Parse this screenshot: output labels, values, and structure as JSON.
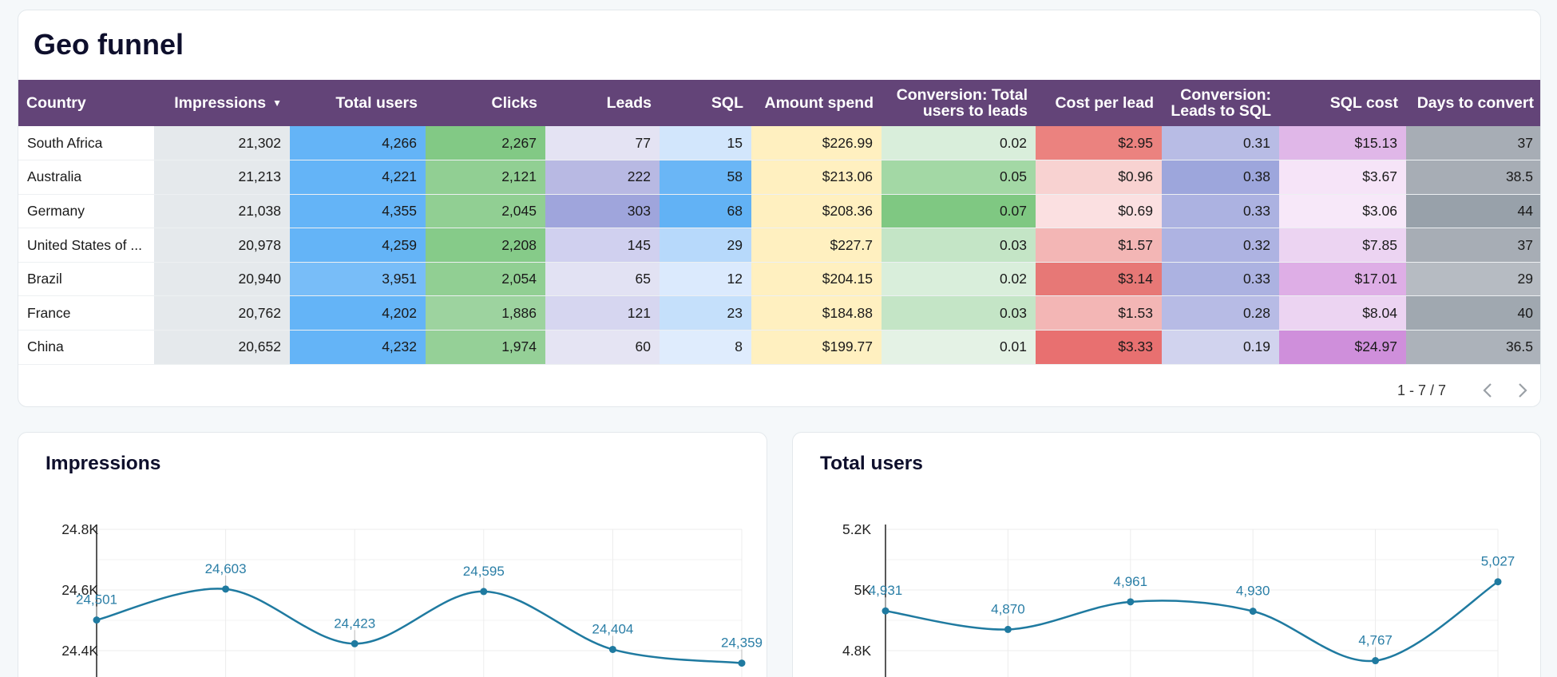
{
  "geo": {
    "title": "Geo funnel",
    "columns": [
      "Country",
      "Impressions",
      "Total users",
      "Clicks",
      "Leads",
      "SQL",
      "Amount spend",
      "Conversion: Total users to leads",
      "Cost per lead",
      "Conversion: Leads to SQL",
      "SQL cost",
      "Days to convert"
    ],
    "sort_icon": "sort-desc-icon",
    "rows": [
      [
        "South Africa",
        "21,302",
        "4,266",
        "2,267",
        "77",
        "15",
        "$226.99",
        "0.02",
        "$2.95",
        "0.31",
        "$15.13",
        "37"
      ],
      [
        "Australia",
        "21,213",
        "4,221",
        "2,121",
        "222",
        "58",
        "$213.06",
        "0.05",
        "$0.96",
        "0.38",
        "$3.67",
        "38.5"
      ],
      [
        "Germany",
        "21,038",
        "4,355",
        "2,045",
        "303",
        "68",
        "$208.36",
        "0.07",
        "$0.69",
        "0.33",
        "$3.06",
        "44"
      ],
      [
        "United States of ...",
        "20,978",
        "4,259",
        "2,208",
        "145",
        "29",
        "$227.7",
        "0.03",
        "$1.57",
        "0.32",
        "$7.85",
        "37"
      ],
      [
        "Brazil",
        "20,940",
        "3,951",
        "2,054",
        "65",
        "12",
        "$204.15",
        "0.02",
        "$3.14",
        "0.33",
        "$17.01",
        "29"
      ],
      [
        "France",
        "20,762",
        "4,202",
        "1,886",
        "121",
        "23",
        "$184.88",
        "0.03",
        "$1.53",
        "0.28",
        "$8.04",
        "40"
      ],
      [
        "China",
        "20,652",
        "4,232",
        "1,974",
        "60",
        "8",
        "$199.77",
        "0.01",
        "$3.33",
        "0.19",
        "$24.97",
        "36.5"
      ]
    ],
    "cell_colors": [
      [
        "#ffffff",
        "#e5e9ec",
        "#64b4f7",
        "#82c985",
        "#e4e3f3",
        "#d2e6fc",
        "#fff0c0",
        "#d9eedb",
        "#eb827f",
        "#b8bce5",
        "#e0b7e8",
        "#a7adb5"
      ],
      [
        "#ffffff",
        "#e5e9ec",
        "#64b4f7",
        "#91cf93",
        "#b8b9e3",
        "#6ab6f6",
        "#fff0c0",
        "#a3d8a5",
        "#f8d2d1",
        "#9da6dc",
        "#f6e4f8",
        "#a7adb5"
      ],
      [
        "#ffffff",
        "#e5e9ec",
        "#64b4f7",
        "#91cf93",
        "#9fa5dc",
        "#62b2f5",
        "#fff0c0",
        "#7fc882",
        "#fbe0e1",
        "#acb2e1",
        "#f7e8f9",
        "#98a1aa"
      ],
      [
        "#ffffff",
        "#e5e9ec",
        "#64b4f7",
        "#86cb89",
        "#d0d0ef",
        "#b7d9fb",
        "#fff0c0",
        "#c4e5c6",
        "#f3b6b5",
        "#aeb3e2",
        "#ecd4f2",
        "#a7adb5"
      ],
      [
        "#ffffff",
        "#e5e9ec",
        "#78bdf8",
        "#91cf93",
        "#e2e2f3",
        "#dbeafd",
        "#fff0c0",
        "#d9eedb",
        "#e77876",
        "#acb2e1",
        "#deaee6",
        "#b6bbc2"
      ],
      [
        "#ffffff",
        "#e5e9ec",
        "#64b4f7",
        "#9dd39f",
        "#d6d6f0",
        "#c5e0fb",
        "#fff0c0",
        "#c4e5c6",
        "#f3b6b5",
        "#b7bbe5",
        "#ecd4f2",
        "#a0a8b0"
      ],
      [
        "#ffffff",
        "#e5e9ec",
        "#64b4f7",
        "#95d097",
        "#e5e4f3",
        "#dfecfd",
        "#fff0c0",
        "#e4f2e5",
        "#e87070",
        "#d1d3ee",
        "#cf8fdb",
        "#acb2ba"
      ]
    ],
    "pager": {
      "range": "1 - 7 / 7",
      "prev_icon": "chevron-left-icon",
      "next_icon": "chevron-right-icon"
    }
  },
  "charts": [
    {
      "id": "impressions",
      "title": "Impressions",
      "chart_data": {
        "type": "line",
        "title": "Impressions",
        "values": [
          24501,
          24603,
          24423,
          24595,
          24404,
          24359
        ],
        "labels": [
          "24,501",
          "24,603",
          "24,423",
          "24,595",
          "24,404",
          "24,359"
        ],
        "yticks": [
          24400,
          24600,
          24800
        ],
        "ytick_labels": [
          "24.4K",
          "24.6K",
          "24.8K"
        ],
        "ylim": [
          24250,
          24800
        ],
        "line_color": "#1f7aa0"
      }
    },
    {
      "id": "total-users",
      "title": "Total users",
      "chart_data": {
        "type": "line",
        "title": "Total users",
        "values": [
          4931,
          4870,
          4961,
          4930,
          4767,
          5027
        ],
        "labels": [
          "4,931",
          "4,870",
          "4,961",
          "4,930",
          "4,767",
          "5,027"
        ],
        "yticks": [
          4800,
          5000,
          5200
        ],
        "ytick_labels": [
          "4.8K",
          "5K",
          "5.2K"
        ],
        "ylim": [
          4650,
          5200
        ],
        "line_color": "#1f7aa0"
      }
    }
  ]
}
